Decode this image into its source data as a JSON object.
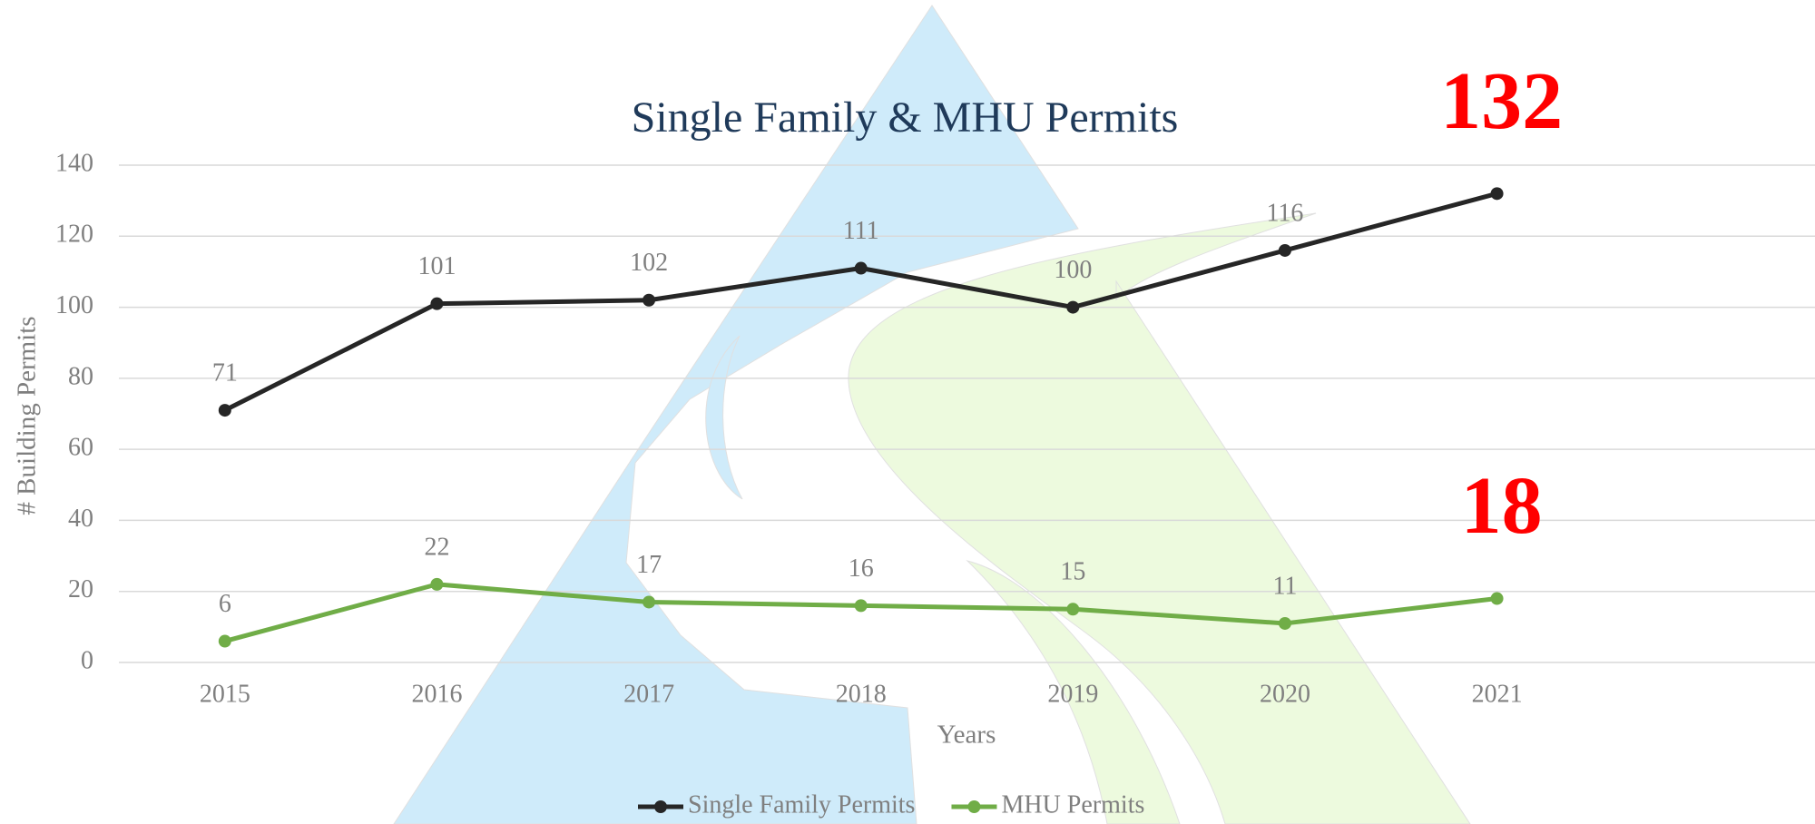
{
  "chart_data": {
    "type": "line",
    "title": "Single Family & MHU Permits",
    "x_label": "Years",
    "y_label": "# Building Permits",
    "categories": [
      "2015",
      "2016",
      "2017",
      "2018",
      "2019",
      "2020",
      "2021",
      null
    ],
    "series": [
      {
        "name": "Single Family Permits",
        "color": "#262626",
        "values": [
          71,
          101,
          102,
          111,
          100,
          116,
          132,
          null
        ]
      },
      {
        "name": "MHU Permits",
        "color": "#70ad47",
        "values": [
          6,
          22,
          17,
          16,
          15,
          11,
          18,
          null
        ]
      }
    ],
    "highlight_color": "#ff0000",
    "ylim": [
      0,
      140
    ],
    "yticks": [
      0,
      20,
      40,
      60,
      80,
      100,
      120,
      140
    ],
    "grid": true,
    "legend": "bottom"
  }
}
